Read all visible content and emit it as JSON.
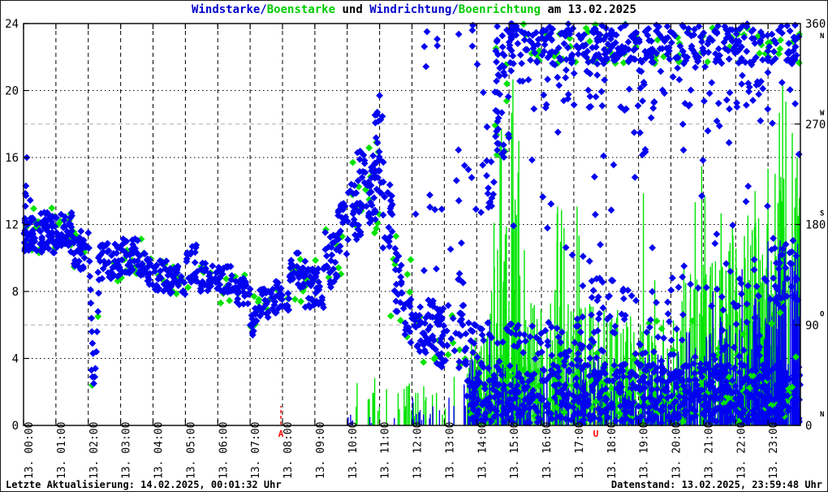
{
  "title": {
    "windstaerke": "Windstarke/",
    "boenstaerke": "Boenstarke",
    "und": " und ",
    "windrichtung": "Windrichtung/",
    "boenrichtung": "Boenrichtung",
    "date_suffix": " am 13.02.2025"
  },
  "footer": {
    "last_update": "Letzte Aktualisierung: 14.02.2025, 00:01:32 Uhr",
    "data_state": "Datenstand: 13.02.2025, 23:59:48 Uhr"
  },
  "colors": {
    "point_blue": "#0202f0",
    "point_green": "#00e400",
    "title_blue": "#0000cc",
    "title_green": "#00cc00",
    "black": "#000000",
    "grid_black": "#000000",
    "grid_light": "#bcbcbc",
    "sun_red": "#ff0000",
    "background": "#ffffff"
  },
  "chart_data": {
    "type": "scatter",
    "title": "Windstarke/Boenstarke und Windrichtung/Boenrichtung am 13.02.2025",
    "seed": 1337,
    "x_axis": {
      "range": [
        0,
        24
      ],
      "tick_labels": [
        "13. 00:00",
        "13. 01:00",
        "13. 02:00",
        "13. 03:00",
        "13. 04:00",
        "13. 05:00",
        "13. 06:00",
        "13. 07:00",
        "13. 08:00",
        "13. 09:00",
        "13. 10:00",
        "13. 11:00",
        "13. 12:00",
        "13. 13:00",
        "13. 14:00",
        "13. 15:00",
        "13. 16:00",
        "13. 17:00",
        "13. 18:00",
        "13. 19:00",
        "13. 20:00",
        "13. 21:00",
        "13. 22:00",
        "13. 23:00"
      ],
      "grid_hours": [
        1,
        2,
        3,
        4,
        5,
        6,
        7,
        8,
        9,
        10,
        11,
        12,
        13,
        14,
        15,
        16,
        17,
        18,
        19,
        20,
        21,
        22,
        23
      ]
    },
    "y_left": {
      "range": [
        0,
        24
      ],
      "ticks": [
        0,
        4,
        8,
        12,
        16,
        20,
        24
      ],
      "grid_values": [
        4,
        8,
        12,
        16,
        20
      ]
    },
    "y_right": {
      "range": [
        0,
        360
      ],
      "ticks": [
        {
          "v": 0,
          "label": "0",
          "compass": "N"
        },
        {
          "v": 90,
          "label": "90",
          "compass": "O"
        },
        {
          "v": 180,
          "label": "180",
          "compass": "S"
        },
        {
          "v": 270,
          "label": "270",
          "compass": "W"
        },
        {
          "v": 360,
          "label": "360",
          "compass": "N"
        }
      ],
      "grid_values": [
        90,
        270
      ]
    },
    "sun_markers": [
      {
        "label": "A",
        "t": 7.95
      },
      {
        "label": "U",
        "t": 17.68
      }
    ],
    "series": [
      {
        "name": "boenrichtung-impulses",
        "legend": "Boenrichtung",
        "style": "impulses",
        "axis": "right",
        "color": "point_green",
        "envelopes": [
          [
            10.0,
            11.5,
            12,
            10,
            45
          ],
          [
            11.5,
            13.6,
            22,
            8,
            45
          ],
          [
            13.6,
            14.5,
            36,
            15,
            90
          ],
          [
            14.5,
            15.0,
            24,
            60,
            200
          ],
          [
            15.0,
            15.35,
            17,
            60,
            230
          ],
          [
            15.35,
            16.4,
            34,
            25,
            110
          ],
          [
            16.4,
            16.75,
            12,
            60,
            190
          ],
          [
            16.75,
            18.6,
            78,
            25,
            110
          ],
          [
            18.6,
            20.3,
            62,
            25,
            100
          ],
          [
            20.3,
            21.3,
            42,
            40,
            150
          ],
          [
            21.3,
            22.3,
            48,
            40,
            170
          ],
          [
            22.3,
            23.2,
            46,
            50,
            190
          ],
          [
            23.2,
            24.0,
            44,
            60,
            230
          ]
        ],
        "points": [
          [
            14.42,
            100
          ],
          [
            14.46,
            120
          ],
          [
            14.72,
            253
          ],
          [
            14.76,
            266
          ],
          [
            15.08,
            280
          ],
          [
            15.12,
            310
          ],
          [
            15.3,
            255
          ],
          [
            15.47,
            157
          ],
          [
            16.5,
            196
          ],
          [
            16.62,
            193
          ],
          [
            17.1,
            196
          ],
          [
            17.16,
            170
          ],
          [
            19.15,
            208
          ],
          [
            19.5,
            130
          ],
          [
            20.75,
            200
          ],
          [
            20.95,
            232
          ],
          [
            21.05,
            205
          ],
          [
            21.55,
            190
          ],
          [
            21.9,
            180
          ],
          [
            22.6,
            210
          ],
          [
            23.0,
            230
          ],
          [
            23.35,
            280
          ],
          [
            23.45,
            308
          ],
          [
            23.55,
            290
          ],
          [
            23.75,
            262
          ],
          [
            23.9,
            240
          ]
        ]
      },
      {
        "name": "windrichtung-impulses",
        "legend": "Windrichtung",
        "style": "impulses",
        "axis": "right",
        "color": "point_blue",
        "envelopes": [
          [
            10.0,
            12.0,
            7,
            2,
            10
          ],
          [
            12.0,
            13.6,
            15,
            4,
            25
          ],
          [
            13.6,
            14.5,
            26,
            8,
            60
          ],
          [
            14.5,
            16.0,
            30,
            8,
            55
          ],
          [
            16.0,
            18.0,
            40,
            8,
            60
          ],
          [
            18.0,
            20.0,
            48,
            8,
            65
          ],
          [
            20.0,
            21.5,
            40,
            10,
            85
          ],
          [
            21.5,
            22.5,
            44,
            15,
            100
          ],
          [
            22.5,
            23.25,
            48,
            20,
            120
          ],
          [
            23.25,
            24.0,
            42,
            30,
            170
          ]
        ],
        "points": [
          [
            14.4,
            95
          ],
          [
            21.3,
            120
          ],
          [
            22.2,
            140
          ],
          [
            23.0,
            165
          ],
          [
            23.35,
            160
          ],
          [
            23.5,
            150
          ]
        ]
      },
      {
        "name": "boenstaerke-points",
        "legend": "Boenstarke",
        "style": "points",
        "axis": "left",
        "color": "point_green",
        "envelopes": [
          [
            0.0,
            1.5,
            26,
            10.2,
            13.0
          ],
          [
            1.5,
            2.0,
            7,
            9.2,
            11.8
          ],
          [
            2.3,
            4.0,
            16,
            8.4,
            11.2
          ],
          [
            4.0,
            6.0,
            15,
            7.8,
            10.1
          ],
          [
            6.0,
            7.0,
            8,
            7.3,
            9.3
          ],
          [
            7.0,
            8.2,
            11,
            5.8,
            8.5
          ],
          [
            8.2,
            9.3,
            11,
            7.2,
            10.5
          ],
          [
            9.3,
            10.0,
            7,
            8.6,
            13.4
          ],
          [
            10.0,
            11.15,
            15,
            11.5,
            16.6
          ],
          [
            11.15,
            12.1,
            9,
            5.2,
            12.0
          ],
          [
            12.1,
            13.67,
            13,
            3.6,
            7.6
          ],
          [
            13.67,
            24.0,
            160,
            0.2,
            3.4
          ],
          [
            17.0,
            24.0,
            18,
            3.5,
            7.5
          ],
          [
            14.56,
            15.0,
            9,
            16.0,
            24.0
          ],
          [
            15.0,
            24.0,
            75,
            21.6,
            24.0
          ]
        ],
        "points": [
          [
            2.12,
            2.4
          ],
          [
            2.3,
            6.5
          ],
          [
            10.9,
            16.9
          ]
        ]
      },
      {
        "name": "windstaerke-points",
        "legend": "Windstarke",
        "style": "points",
        "axis": "left",
        "color": "point_blue",
        "envelopes": [
          [
            0.0,
            0.5,
            40,
            10.4,
            12.6
          ],
          [
            0.03,
            0.3,
            5,
            12.8,
            14.9
          ],
          [
            0.5,
            1.5,
            85,
            10.3,
            12.8
          ],
          [
            1.5,
            1.95,
            28,
            9.3,
            11.6
          ],
          [
            2.3,
            3.0,
            42,
            8.6,
            10.9
          ],
          [
            3.0,
            3.6,
            36,
            9.0,
            11.2
          ],
          [
            3.6,
            4.0,
            24,
            8.4,
            10.3
          ],
          [
            4.0,
            4.5,
            28,
            8.0,
            9.9
          ],
          [
            4.5,
            5.0,
            28,
            7.8,
            9.6
          ],
          [
            5.0,
            5.4,
            26,
            8.5,
            10.8
          ],
          [
            5.4,
            6.0,
            32,
            8.0,
            9.7
          ],
          [
            6.0,
            6.5,
            28,
            7.9,
            9.5
          ],
          [
            6.5,
            7.0,
            28,
            7.2,
            8.9
          ],
          [
            7.0,
            7.25,
            14,
            5.4,
            7.2
          ],
          [
            7.25,
            7.6,
            20,
            6.4,
            8.2
          ],
          [
            7.6,
            8.2,
            34,
            6.7,
            8.6
          ],
          [
            8.2,
            8.7,
            30,
            8.2,
            10.3
          ],
          [
            8.7,
            9.3,
            36,
            7.0,
            9.6
          ],
          [
            9.3,
            9.7,
            26,
            8.2,
            11.6
          ],
          [
            9.7,
            10.0,
            20,
            10.2,
            13.3
          ],
          [
            10.0,
            10.45,
            30,
            11.0,
            14.8
          ],
          [
            10.28,
            10.5,
            6,
            15.0,
            16.7
          ],
          [
            10.45,
            10.9,
            32,
            12.0,
            16.2
          ],
          [
            10.8,
            11.15,
            20,
            13.8,
            17.6
          ],
          [
            10.85,
            11.12,
            7,
            17.8,
            19.6
          ],
          [
            11.1,
            11.4,
            22,
            10.6,
            14.4
          ],
          [
            11.4,
            11.75,
            20,
            6.8,
            10.9
          ],
          [
            11.75,
            12.1,
            18,
            4.8,
            7.7
          ],
          [
            12.1,
            12.75,
            38,
            4.3,
            7.5
          ],
          [
            12.75,
            13.67,
            52,
            3.4,
            7.3
          ],
          [
            12.1,
            14.4,
            16,
            8.2,
            13.8
          ],
          [
            12.15,
            14.5,
            10,
            21.3,
            24.0
          ],
          [
            13.3,
            14.5,
            8,
            14.5,
            21.0
          ],
          [
            13.67,
            24.0,
            640,
            0.15,
            3.7
          ],
          [
            13.67,
            16.9,
            60,
            3.7,
            6.2
          ],
          [
            14.3,
            14.56,
            12,
            12.0,
            16.5
          ],
          [
            14.56,
            15.0,
            40,
            16.0,
            24.0
          ],
          [
            15.0,
            24.0,
            360,
            21.6,
            24.0
          ],
          [
            15.0,
            24.0,
            85,
            18.8,
            21.6
          ],
          [
            15.0,
            24.0,
            50,
            8.0,
            18.5
          ],
          [
            17.0,
            18.6,
            55,
            3.5,
            8.8
          ],
          [
            18.6,
            20.0,
            22,
            3.5,
            8.0
          ],
          [
            20.0,
            22.0,
            28,
            3.5,
            9.6
          ],
          [
            22.0,
            23.1,
            22,
            4.0,
            9.0
          ],
          [
            23.1,
            23.95,
            28,
            7.0,
            11.5
          ]
        ],
        "points": [
          [
            0.1,
            16.0
          ],
          [
            2.0,
            11.5
          ],
          [
            2.02,
            10.6
          ],
          [
            2.04,
            9.8
          ],
          [
            2.05,
            8.9
          ],
          [
            2.07,
            8.1
          ],
          [
            2.08,
            7.3
          ],
          [
            2.1,
            6.4
          ],
          [
            2.11,
            5.6
          ],
          [
            2.13,
            4.9
          ],
          [
            2.1,
            3.3
          ],
          [
            2.13,
            2.9
          ],
          [
            2.15,
            4.3
          ],
          [
            2.17,
            2.5
          ],
          [
            2.2,
            2.9
          ],
          [
            2.22,
            3.4
          ],
          [
            2.25,
            4.4
          ],
          [
            2.27,
            5.6
          ],
          [
            2.3,
            6.8
          ],
          [
            2.32,
            7.9
          ],
          [
            7.05,
            5.9
          ],
          [
            7.08,
            5.4
          ],
          [
            11.0,
            19.7
          ]
        ]
      }
    ]
  }
}
